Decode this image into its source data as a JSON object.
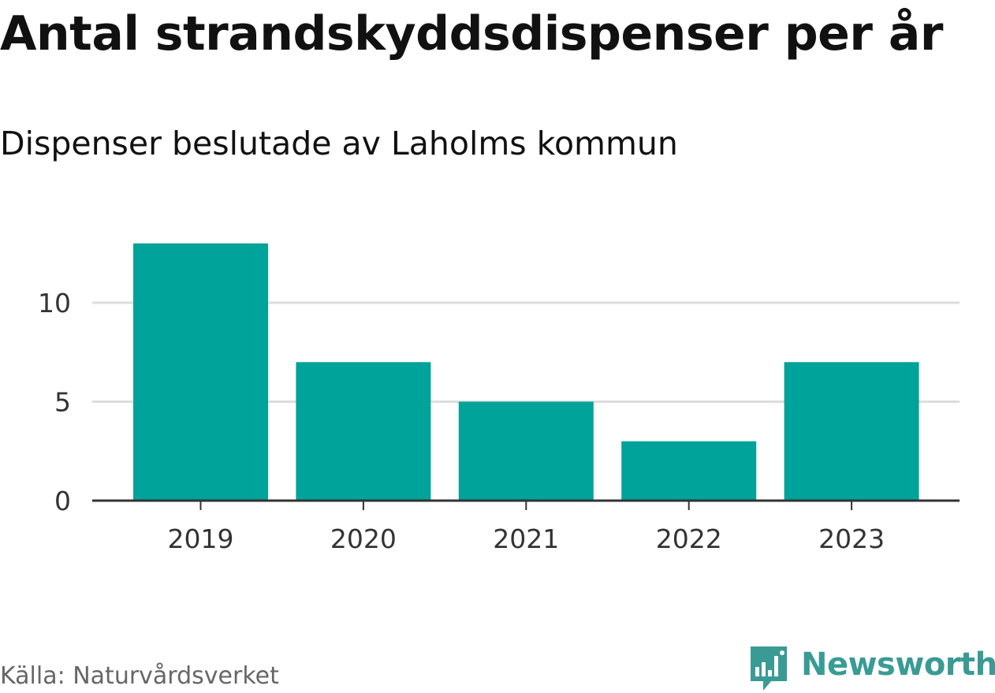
{
  "title": "Antal strandskyddsdispenser per år",
  "subtitle": "Dispenser beslutade av Laholms kommun",
  "source": "Källa: Naturvårdsverket",
  "brand": {
    "name": "Newsworthy",
    "icon": "bar-chart-speech-bubble-icon",
    "color": "#3a9b95"
  },
  "colors": {
    "bar": "#00a39a",
    "grid": "#dddddd",
    "axis": "#333333",
    "tick_text": "#333333"
  },
  "chart_data": {
    "type": "bar",
    "title": "Antal strandskyddsdispenser per år",
    "subtitle": "Dispenser beslutade av Laholms kommun",
    "categories": [
      "2019",
      "2020",
      "2021",
      "2022",
      "2023"
    ],
    "values": [
      13,
      7,
      5,
      3,
      7
    ],
    "xlabel": "",
    "ylabel": "",
    "ylim": [
      0,
      15
    ],
    "yticks": [
      0,
      5,
      10
    ],
    "grid": true,
    "legend": "none"
  }
}
